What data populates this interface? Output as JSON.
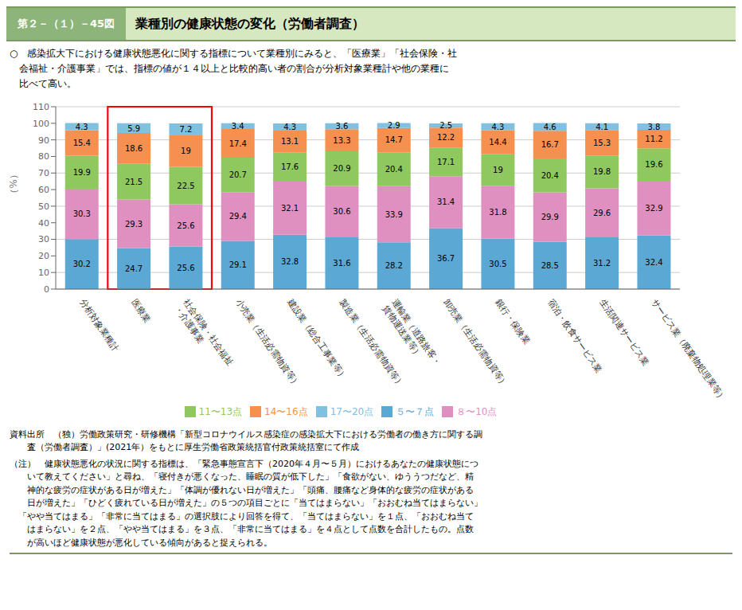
{
  "chart_data": {
    "type": "bar",
    "stacked": true,
    "figure_number": "第２－（１）－45図",
    "title": "業種別の健康状態の変化（労働者調査）",
    "subtitle": "○　感染拡大下における健康状態悪化に関する指標について業種別にみると、「医療業」「社会保険・社\n　会福祉・介護事業」では、指標の値が１４以上と比較的高い者の割合が分析対象業種計や他の業種に\n　比べて高い。",
    "categories": [
      "分析対象業種計",
      "医療業",
      "社会保険・社会福祉\n・介護事業",
      "小売業（生活必需物資等）",
      "建設業（総合工事業等）",
      "製造業（生活必需物資等）",
      "運輸業（道路旅客・\n貨物運送業等）",
      "卸売業（生活必需物資等）",
      "銀行・保険業",
      "宿泊・飲食サービス業",
      "生活関連サービス業",
      "サービス業（廃棄物処理業等）"
    ],
    "series": [
      {
        "name": "５〜７点",
        "color": "#5ba8d5",
        "values": [
          30.2,
          24.7,
          25.6,
          29.1,
          32.8,
          31.6,
          28.2,
          36.7,
          30.5,
          28.5,
          31.2,
          32.4
        ]
      },
      {
        "name": "８〜10点",
        "color": "#e090c0",
        "values": [
          30.3,
          29.3,
          25.6,
          29.4,
          32.1,
          30.6,
          33.9,
          31.4,
          31.8,
          29.9,
          29.6,
          32.9
        ]
      },
      {
        "name": "11〜13点",
        "color": "#90c860",
        "values": [
          19.9,
          21.5,
          22.5,
          20.7,
          17.6,
          20.9,
          20.4,
          17.1,
          19.0,
          20.4,
          19.8,
          19.6
        ]
      },
      {
        "name": "14〜16点",
        "color": "#f59050",
        "values": [
          15.4,
          18.6,
          19.0,
          17.4,
          13.1,
          13.3,
          14.7,
          12.2,
          14.4,
          16.7,
          15.3,
          11.2
        ]
      },
      {
        "name": "17〜20点",
        "color": "#80c0e0",
        "values": [
          4.3,
          5.9,
          7.2,
          3.4,
          4.3,
          3.6,
          2.9,
          2.5,
          4.3,
          4.6,
          4.1,
          3.8
        ]
      }
    ],
    "ylabel": "（%）",
    "ylim": [
      0,
      110
    ],
    "yticks": [
      0,
      10,
      20,
      30,
      40,
      50,
      60,
      70,
      80,
      90,
      100,
      110
    ],
    "grid": true,
    "data_labels": true,
    "legend": "bottom",
    "highlight": {
      "categories": [
        "医療業",
        "社会保険・社会福祉\n・介護事業"
      ],
      "color": "red"
    },
    "source": "資料出所　（独）労働政策研究・研修機構「新型コロナウイルス感染症の感染拡大下における労働者の働き方に関する調\n　　査（労働者調査）」(2021年）をもとに厚生労働省政策統括官付政策統括室にて作成",
    "note": "（注）　健康状態悪化の状況に関する指標は、「緊急事態宣言下（2020年４月〜５月）におけるあなたの健康状態につ\n　　いて教えてください」と尋ね、「寝付きが悪くなった、睡眠の質が低下した」「食欲がない、ゆううつだなど、精\n　　神的な疲労の症状がある日が増えた」「体調が優れない日が増えた」「頭痛、腰痛など身体的な疲労の症状がある\n　　日が増えた」「ひどく疲れている日が増えた」の５つの項目ごとに「当てはまらない」「おおむね当てはまらない」\n　「やや当てはまる」「非常に当てはまる」の選択肢により回答を得て、「当てはまらない」を１点、「おおむね当て\n　　はまらない」を２点、「やや当てはまる」を３点、「非常に当てはまる」を４点として点数を合計したもの。点数\n　　が高いほど健康状態が悪化している傾向があると捉えられる。"
  }
}
